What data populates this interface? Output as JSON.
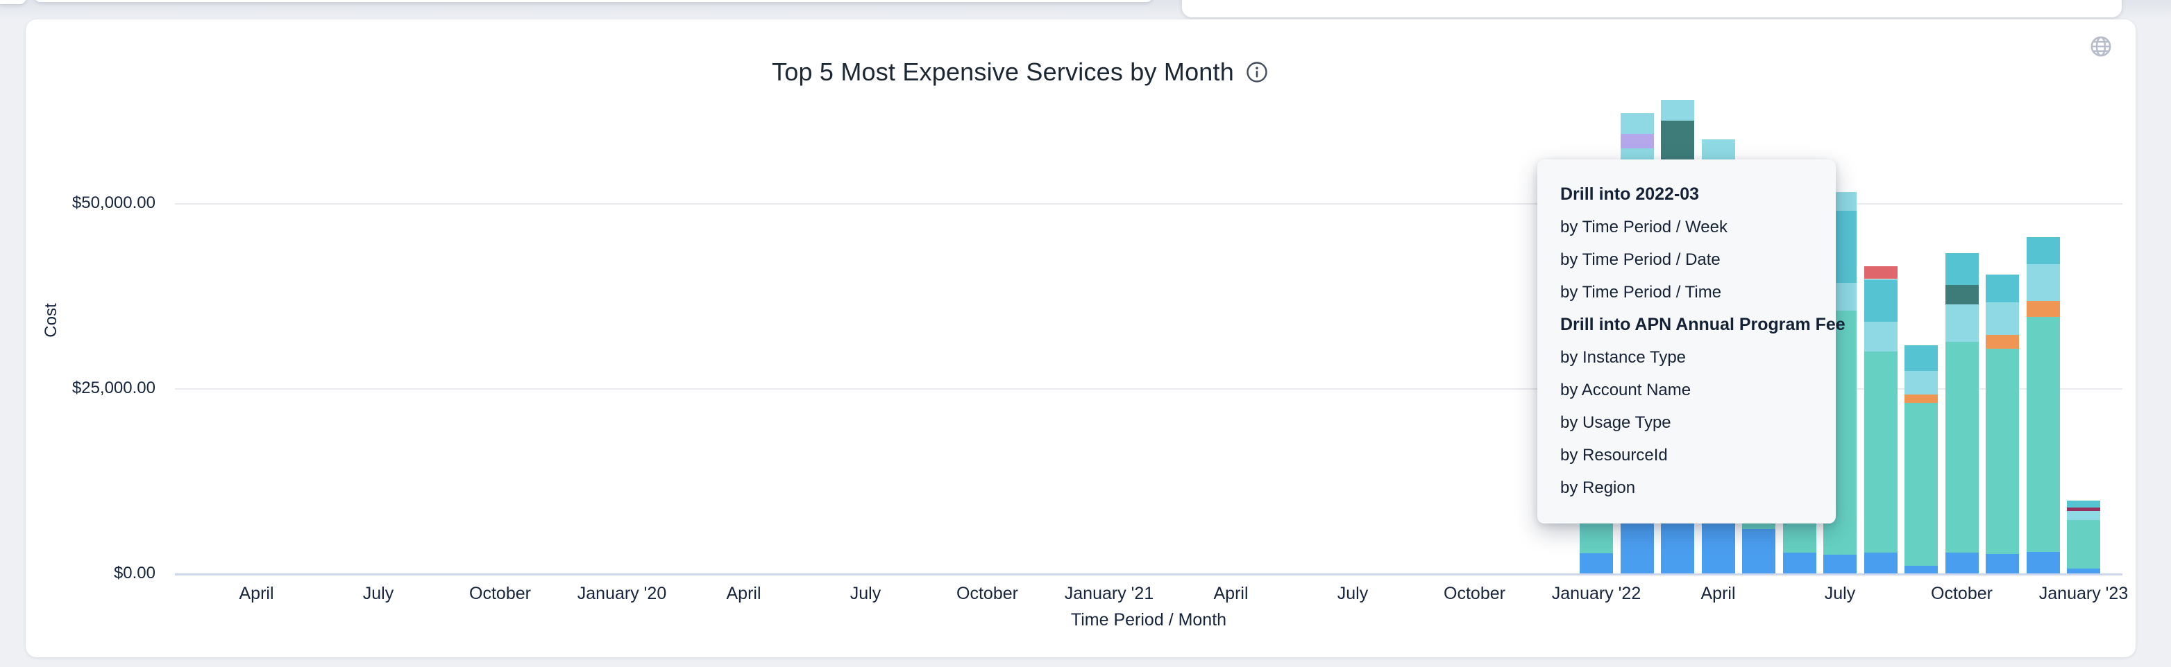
{
  "card": {
    "title": "Top 5 Most Expensive Services by Month"
  },
  "icons": {
    "info": "info-circle",
    "globe": "globe"
  },
  "chart_data": {
    "type": "bar",
    "stacked": true,
    "title": "Top 5 Most Expensive Services by Month",
    "xlabel": "Time Period / Month",
    "ylabel": "Cost",
    "ylim": [
      0,
      66500
    ],
    "grid": true,
    "legend": "none",
    "y_ticks": [
      {
        "label": "$0.00",
        "value": 0
      },
      {
        "label": "$25,000.00",
        "value": 25000
      },
      {
        "label": "$50,000.00",
        "value": 50000
      }
    ],
    "x_ticks": [
      {
        "label": "April",
        "month_offset": -33
      },
      {
        "label": "July",
        "month_offset": -30
      },
      {
        "label": "October",
        "month_offset": -27
      },
      {
        "label": "January '20",
        "month_offset": -24
      },
      {
        "label": "April",
        "month_offset": -21
      },
      {
        "label": "July",
        "month_offset": -18
      },
      {
        "label": "October",
        "month_offset": -15
      },
      {
        "label": "January '21",
        "month_offset": -12
      },
      {
        "label": "April",
        "month_offset": -9
      },
      {
        "label": "July",
        "month_offset": -6
      },
      {
        "label": "October",
        "month_offset": -3
      },
      {
        "label": "January '22",
        "month_offset": 0
      },
      {
        "label": "April",
        "month_offset": 3
      },
      {
        "label": "July",
        "month_offset": 6
      },
      {
        "label": "October",
        "month_offset": 9
      },
      {
        "label": "January '23",
        "month_offset": 12
      }
    ],
    "colors": {
      "teal": "#66d1c2",
      "blue": "#4a9ef0",
      "light_cyan": "#8ed9e3",
      "medium_cyan": "#56c3d2",
      "orange": "#f09655",
      "red": "#df666a",
      "dark_teal": "#3d7c79",
      "purple": "#b4a7ea",
      "magenta": "#97325e"
    },
    "known_series": {
      "dark_teal": "APN Annual Program Fee"
    },
    "bars": [
      {
        "month": "2022-01",
        "month_offset": 0,
        "segments": [
          {
            "c": "blue",
            "v": 2780
          },
          {
            "c": "teal",
            "v": 34400
          },
          {
            "c": "light_cyan",
            "v": 3280
          },
          {
            "c": "medium_cyan",
            "v": 4680
          }
        ]
      },
      {
        "month": "2022-02",
        "month_offset": 1,
        "segments": [
          {
            "c": "blue",
            "v": 8240
          },
          {
            "c": "teal",
            "v": 45400
          },
          {
            "c": "light_cyan",
            "v": 3840
          },
          {
            "c": "purple",
            "v": 1940
          },
          {
            "c": "light_cyan",
            "v": 2810
          }
        ]
      },
      {
        "month": "2022-03",
        "month_offset": 2,
        "segments": [
          {
            "c": "blue",
            "v": 7770
          },
          {
            "c": "teal",
            "v": 44460
          },
          {
            "c": "dark_teal",
            "v": 9050
          },
          {
            "c": "light_cyan",
            "v": 2810
          }
        ]
      },
      {
        "month": "2022-04",
        "month_offset": 3,
        "segments": [
          {
            "c": "blue",
            "v": 7300
          },
          {
            "c": "teal",
            "v": 47740
          },
          {
            "c": "light_cyan",
            "v": 3680
          }
        ]
      },
      {
        "month": "2022-05",
        "month_offset": 4,
        "segments": [
          {
            "c": "blue",
            "v": 6080
          },
          {
            "c": "teal",
            "v": 30230
          },
          {
            "c": "medium_cyan",
            "v": 3740
          }
        ]
      },
      {
        "month": "2022-06",
        "month_offset": 5,
        "segments": [
          {
            "c": "blue",
            "v": 2930
          },
          {
            "c": "teal",
            "v": 38070
          },
          {
            "c": "light_cyan",
            "v": 4020
          }
        ]
      },
      {
        "month": "2022-07",
        "month_offset": 6,
        "segments": [
          {
            "c": "blue",
            "v": 2620
          },
          {
            "c": "teal",
            "v": 32980
          },
          {
            "c": "light_cyan",
            "v": 3740
          },
          {
            "c": "medium_cyan",
            "v": 9680
          },
          {
            "c": "light_cyan",
            "v": 2580
          }
        ]
      },
      {
        "month": "2022-08",
        "month_offset": 7,
        "segments": [
          {
            "c": "blue",
            "v": 2870
          },
          {
            "c": "teal",
            "v": 27200
          },
          {
            "c": "light_cyan",
            "v": 3970
          },
          {
            "c": "medium_cyan",
            "v": 5800
          },
          {
            "c": "red",
            "v": 1710
          }
        ]
      },
      {
        "month": "2022-09",
        "month_offset": 8,
        "segments": [
          {
            "c": "blue",
            "v": 1120
          },
          {
            "c": "teal",
            "v": 22000
          },
          {
            "c": "orange",
            "v": 1120
          },
          {
            "c": "light_cyan",
            "v": 3180
          },
          {
            "c": "medium_cyan",
            "v": 3490
          }
        ]
      },
      {
        "month": "2022-10",
        "month_offset": 9,
        "segments": [
          {
            "c": "blue",
            "v": 2900
          },
          {
            "c": "teal",
            "v": 28430
          },
          {
            "c": "light_cyan",
            "v": 5080
          },
          {
            "c": "dark_teal",
            "v": 2620
          },
          {
            "c": "medium_cyan",
            "v": 4310
          }
        ]
      },
      {
        "month": "2022-11",
        "month_offset": 10,
        "segments": [
          {
            "c": "blue",
            "v": 2710
          },
          {
            "c": "teal",
            "v": 27730
          },
          {
            "c": "orange",
            "v": 1820
          },
          {
            "c": "light_cyan",
            "v": 4430
          },
          {
            "c": "medium_cyan",
            "v": 3740
          }
        ]
      },
      {
        "month": "2022-12",
        "month_offset": 11,
        "segments": [
          {
            "c": "blue",
            "v": 3000
          },
          {
            "c": "teal",
            "v": 31760
          },
          {
            "c": "orange",
            "v": 2100
          },
          {
            "c": "light_cyan",
            "v": 4990
          },
          {
            "c": "medium_cyan",
            "v": 3680
          }
        ]
      },
      {
        "month": "2023-01",
        "month_offset": 12,
        "segments": [
          {
            "c": "blue",
            "v": 750
          },
          {
            "c": "teal",
            "v": 6550
          },
          {
            "c": "light_cyan",
            "v": 1250
          },
          {
            "c": "magenta",
            "v": 470
          },
          {
            "c": "medium_cyan",
            "v": 940
          }
        ]
      }
    ]
  },
  "context_menu": {
    "sections": [
      {
        "header": "Drill into 2022-03",
        "items": [
          "by Time Period / Week",
          "by Time Period / Date",
          "by Time Period / Time"
        ]
      },
      {
        "header": "Drill into APN Annual Program Fee",
        "items": [
          "by Instance Type",
          "by Account Name",
          "by Usage Type",
          "by ResourceId",
          "by Region"
        ]
      }
    ]
  }
}
